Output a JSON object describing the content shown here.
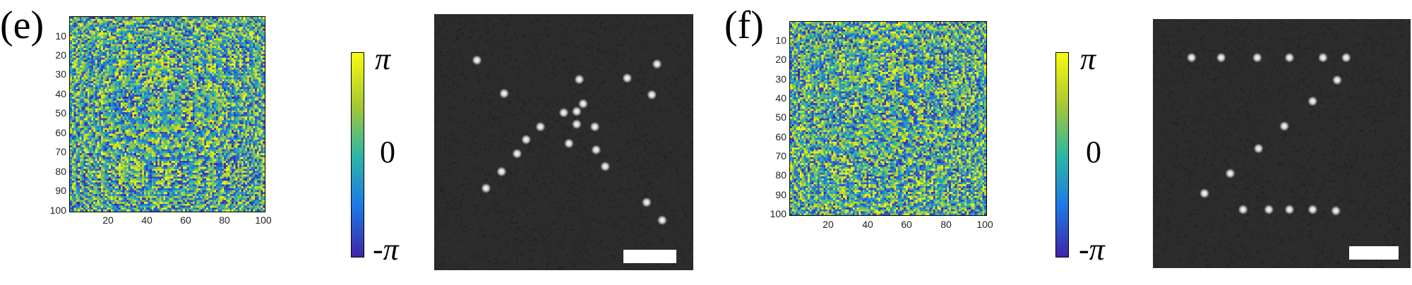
{
  "panels": [
    {
      "label": "(e)",
      "y_ticks": [
        "10",
        "20",
        "30",
        "40",
        "50",
        "60",
        "70",
        "80",
        "90",
        "100"
      ],
      "x_ticks": [
        "20",
        "40",
        "60",
        "80",
        "100"
      ],
      "colorbar": {
        "top": "π",
        "middle": "0",
        "bottom_sign": "-",
        "bottom_symbol": "π"
      },
      "focal_pattern": "X"
    },
    {
      "label": "(f)",
      "y_ticks": [
        "10",
        "20",
        "30",
        "40",
        "50",
        "60",
        "70",
        "80",
        "90",
        "100"
      ],
      "x_ticks": [
        "20",
        "40",
        "60",
        "80",
        "100"
      ],
      "colorbar": {
        "top": "π",
        "middle": "0",
        "bottom_sign": "-",
        "bottom_symbol": "π"
      },
      "focal_pattern": "Z"
    }
  ],
  "colors": {
    "parula_low": "#3e26a8",
    "parula_mid": "#2eb7a4",
    "parula_high": "#f9fb0e",
    "focal_background": "#2c2c2c",
    "spot": "#ffffff"
  }
}
